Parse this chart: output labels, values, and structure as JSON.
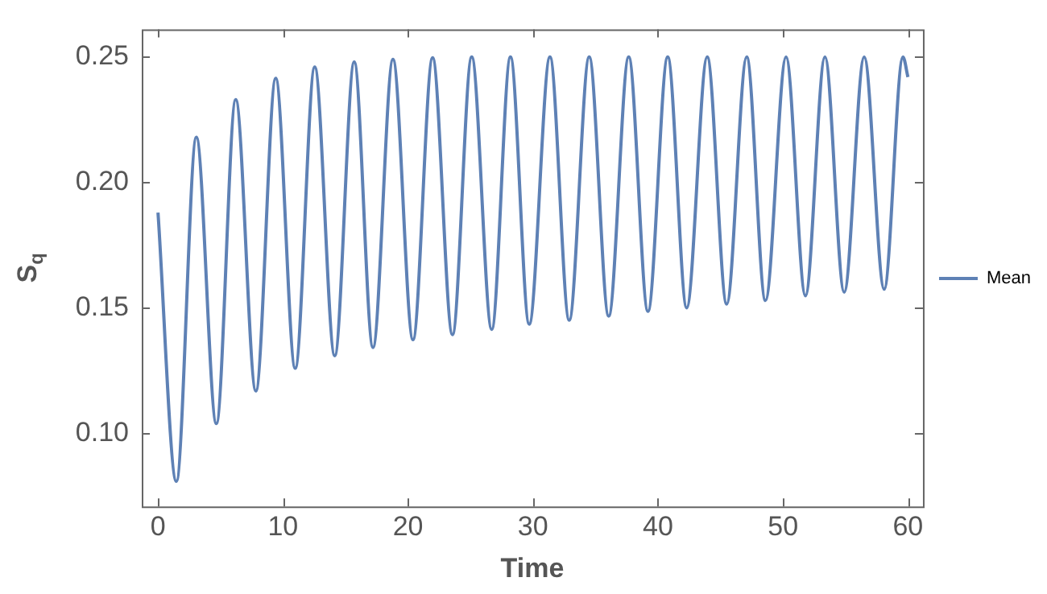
{
  "chart_data": {
    "type": "line",
    "xlabel": "Time",
    "ylabel": "S$_{q}$",
    "legend": "right",
    "marker": "none",
    "line_style": "solid",
    "grid": false,
    "xlim": [
      -1.3,
      61.2
    ],
    "ylim": [
      0.071,
      0.261
    ],
    "xticks": [
      0,
      10,
      20,
      30,
      40,
      50,
      60
    ],
    "yticks": [
      {
        "value": 0.1,
        "label": "0.10"
      },
      {
        "value": 0.15,
        "label": "0.15"
      },
      {
        "value": 0.2,
        "label": "0.20"
      },
      {
        "value": 0.25,
        "label": "0.25"
      }
    ],
    "series": [
      {
        "name": "Mean",
        "color": "#5e81b5",
        "x": [
          0,
          1.47,
          3.07,
          4.67,
          6.22,
          7.83,
          9.42,
          10.98,
          12.54,
          14.14,
          15.7,
          17.2,
          18.8,
          20.4,
          21.97,
          23.56,
          25.1,
          26.7,
          28.2,
          29.7,
          31.36,
          32.9,
          34.5,
          36.06,
          37.66,
          39.2,
          40.78,
          42.3,
          43.94,
          45.5,
          47.1,
          48.6,
          50.25,
          51.8,
          53.36,
          54.9,
          56.5,
          58.1,
          59.6,
          60
        ],
        "values": [
          0.188,
          0.081,
          0.218,
          0.104,
          0.233,
          0.117,
          0.2415,
          0.126,
          0.246,
          0.131,
          0.248,
          0.1343,
          0.249,
          0.1374,
          0.2497,
          0.1394,
          0.25,
          0.1415,
          0.25,
          0.1436,
          0.25,
          0.1452,
          0.25,
          0.1468,
          0.25,
          0.1487,
          0.25,
          0.1501,
          0.25,
          0.1516,
          0.25,
          0.153,
          0.25,
          0.1549,
          0.25,
          0.1563,
          0.25,
          0.1575,
          0.25,
          0.242
        ]
      }
    ]
  }
}
